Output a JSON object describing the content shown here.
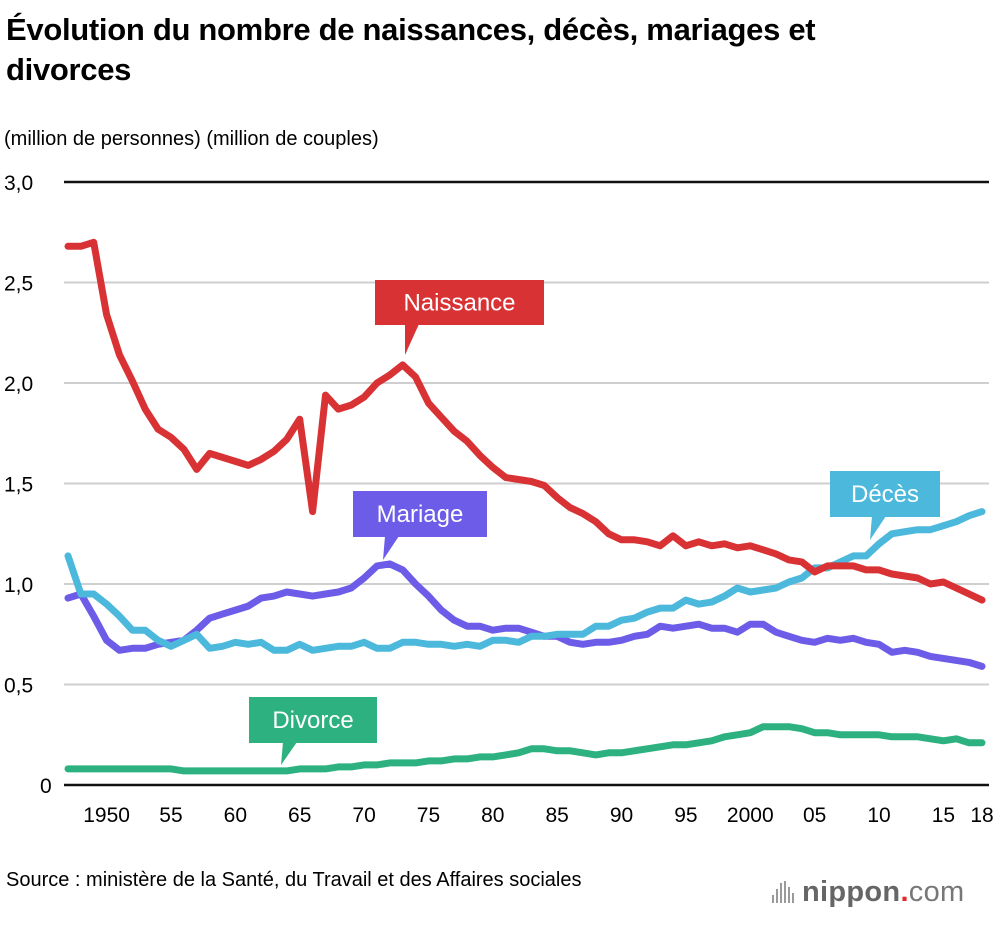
{
  "title": "Évolution du nombre de naissances, décès, mariages et divorces",
  "units_label": "(million de personnes) (million de couples)",
  "source": "Source : ministère de la Santé, du Travail et des Affaires sociales",
  "logo": {
    "name": "nippon",
    "dot": ".",
    "suffix": "com",
    "icon": "sound-bars-icon",
    "dot_color": "#e5262b"
  },
  "chart_data": {
    "type": "line",
    "title": "Évolution du nombre de naissances, décès, mariages et divorces",
    "xlabel": "",
    "ylabel": "(million de personnes) (million de couples)",
    "ylim": [
      0,
      3.0
    ],
    "xlim": [
      1947,
      2018
    ],
    "grid": true,
    "legend": "inline-callouts",
    "yticks": [
      {
        "value": 0,
        "label": "0"
      },
      {
        "value": 0.5,
        "label": "0,5"
      },
      {
        "value": 1.0,
        "label": "1,0"
      },
      {
        "value": 1.5,
        "label": "1,5"
      },
      {
        "value": 2.0,
        "label": "2,0"
      },
      {
        "value": 2.5,
        "label": "2,5"
      },
      {
        "value": 3.0,
        "label": "3,0"
      }
    ],
    "xticks": [
      {
        "value": 1950,
        "label": "1950"
      },
      {
        "value": 1955,
        "label": "55"
      },
      {
        "value": 1960,
        "label": "60"
      },
      {
        "value": 1965,
        "label": "65"
      },
      {
        "value": 1970,
        "label": "70"
      },
      {
        "value": 1975,
        "label": "75"
      },
      {
        "value": 1980,
        "label": "80"
      },
      {
        "value": 1985,
        "label": "85"
      },
      {
        "value": 1990,
        "label": "90"
      },
      {
        "value": 1995,
        "label": "95"
      },
      {
        "value": 2000,
        "label": "2000"
      },
      {
        "value": 2005,
        "label": "05"
      },
      {
        "value": 2010,
        "label": "10"
      },
      {
        "value": 2015,
        "label": "15"
      },
      {
        "value": 2018,
        "label": "18"
      }
    ],
    "x_start": 1947,
    "series": [
      {
        "name": "Naissance",
        "color": "#d93235",
        "label_anchor_year": 1973,
        "values": [
          2.68,
          2.68,
          2.7,
          2.34,
          2.14,
          2.01,
          1.87,
          1.77,
          1.73,
          1.67,
          1.57,
          1.65,
          1.63,
          1.61,
          1.59,
          1.62,
          1.66,
          1.72,
          1.82,
          1.36,
          1.94,
          1.87,
          1.89,
          1.93,
          2.0,
          2.04,
          2.09,
          2.03,
          1.9,
          1.83,
          1.76,
          1.71,
          1.64,
          1.58,
          1.53,
          1.52,
          1.51,
          1.49,
          1.43,
          1.38,
          1.35,
          1.31,
          1.25,
          1.22,
          1.22,
          1.21,
          1.19,
          1.24,
          1.19,
          1.21,
          1.19,
          1.2,
          1.18,
          1.19,
          1.17,
          1.15,
          1.12,
          1.11,
          1.06,
          1.09,
          1.09,
          1.09,
          1.07,
          1.07,
          1.05,
          1.04,
          1.03,
          1.0,
          1.01,
          0.98,
          0.95,
          0.92
        ]
      },
      {
        "name": "Décès",
        "color": "#4cb9dc",
        "label_anchor_year": 2010,
        "values": [
          1.14,
          0.95,
          0.95,
          0.9,
          0.84,
          0.77,
          0.77,
          0.72,
          0.69,
          0.72,
          0.75,
          0.68,
          0.69,
          0.71,
          0.7,
          0.71,
          0.67,
          0.67,
          0.7,
          0.67,
          0.68,
          0.69,
          0.69,
          0.71,
          0.68,
          0.68,
          0.71,
          0.71,
          0.7,
          0.7,
          0.69,
          0.7,
          0.69,
          0.72,
          0.72,
          0.71,
          0.74,
          0.74,
          0.75,
          0.75,
          0.75,
          0.79,
          0.79,
          0.82,
          0.83,
          0.86,
          0.88,
          0.88,
          0.92,
          0.9,
          0.91,
          0.94,
          0.98,
          0.96,
          0.97,
          0.98,
          1.01,
          1.03,
          1.08,
          1.08,
          1.11,
          1.14,
          1.14,
          1.2,
          1.25,
          1.26,
          1.27,
          1.27,
          1.29,
          1.31,
          1.34,
          1.36
        ]
      },
      {
        "name": "Mariage",
        "color": "#6c5ce7",
        "label_anchor_year": 1971,
        "values": [
          0.93,
          0.95,
          0.84,
          0.72,
          0.67,
          0.68,
          0.68,
          0.7,
          0.71,
          0.72,
          0.77,
          0.83,
          0.85,
          0.87,
          0.89,
          0.93,
          0.94,
          0.96,
          0.95,
          0.94,
          0.95,
          0.96,
          0.98,
          1.03,
          1.09,
          1.1,
          1.07,
          1.0,
          0.94,
          0.87,
          0.82,
          0.79,
          0.79,
          0.77,
          0.78,
          0.78,
          0.76,
          0.74,
          0.74,
          0.71,
          0.7,
          0.71,
          0.71,
          0.72,
          0.74,
          0.75,
          0.79,
          0.78,
          0.79,
          0.8,
          0.78,
          0.78,
          0.76,
          0.8,
          0.8,
          0.76,
          0.74,
          0.72,
          0.71,
          0.73,
          0.72,
          0.73,
          0.71,
          0.7,
          0.66,
          0.67,
          0.66,
          0.64,
          0.63,
          0.62,
          0.61,
          0.59
        ]
      },
      {
        "name": "Divorce",
        "color": "#2db181",
        "label_anchor_year": 1963,
        "values": [
          0.08,
          0.08,
          0.08,
          0.08,
          0.08,
          0.08,
          0.08,
          0.08,
          0.08,
          0.07,
          0.07,
          0.07,
          0.07,
          0.07,
          0.07,
          0.07,
          0.07,
          0.07,
          0.08,
          0.08,
          0.08,
          0.09,
          0.09,
          0.1,
          0.1,
          0.11,
          0.11,
          0.11,
          0.12,
          0.12,
          0.13,
          0.13,
          0.14,
          0.14,
          0.15,
          0.16,
          0.18,
          0.18,
          0.17,
          0.17,
          0.16,
          0.15,
          0.16,
          0.16,
          0.17,
          0.18,
          0.19,
          0.2,
          0.2,
          0.21,
          0.22,
          0.24,
          0.25,
          0.26,
          0.29,
          0.29,
          0.29,
          0.28,
          0.26,
          0.26,
          0.25,
          0.25,
          0.25,
          0.25,
          0.24,
          0.24,
          0.24,
          0.23,
          0.22,
          0.23,
          0.21,
          0.21
        ]
      }
    ]
  }
}
